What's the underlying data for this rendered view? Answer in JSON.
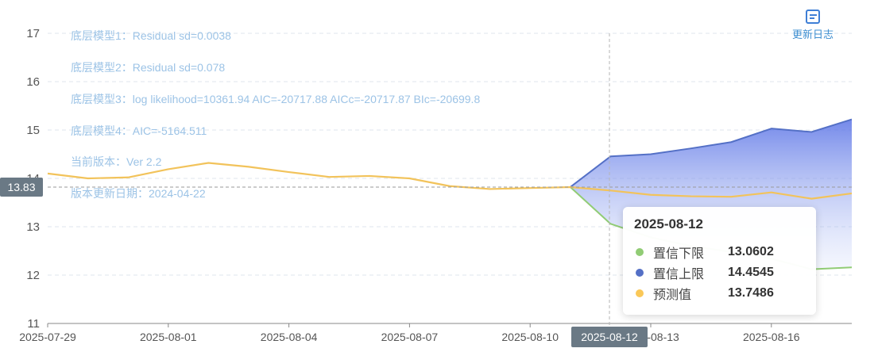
{
  "changelog_label": "更新日志",
  "notes": [
    "底层模型1：Residual sd=0.0038",
    "底层模型2：Residual sd=0.078",
    "底层模型3：log likelihood=10361.94 AIC=-20717.88 AICc=-20717.87 BIc=-20699.8",
    "底层模型4：AIC=-5164.511",
    "当前版本：Ver 2.2",
    "版本更新日期：2024-04-22"
  ],
  "crosshair": {
    "y_label": "13.83",
    "x_label": "2025-08-12"
  },
  "tooltip": {
    "date": "2025-08-12",
    "rows": [
      {
        "label": "置信下限",
        "value": "13.0602",
        "color": "#91cc75"
      },
      {
        "label": "置信上限",
        "value": "14.4545",
        "color": "#5470c6"
      },
      {
        "label": "预测值",
        "value": "13.7486",
        "color": "#fac858"
      }
    ]
  },
  "chart_data": {
    "type": "line",
    "x": [
      "2025-07-29",
      "2025-07-30",
      "2025-07-31",
      "2025-08-01",
      "2025-08-02",
      "2025-08-03",
      "2025-08-04",
      "2025-08-05",
      "2025-08-06",
      "2025-08-07",
      "2025-08-08",
      "2025-08-09",
      "2025-08-10",
      "2025-08-11",
      "2025-08-12",
      "2025-08-13",
      "2025-08-14",
      "2025-08-15",
      "2025-08-16",
      "2025-08-17",
      "2025-08-18"
    ],
    "x_tick_labels": [
      "2025-07-29",
      "2025-08-01",
      "2025-08-04",
      "2025-08-07",
      "2025-08-10",
      "2025-08-13",
      "2025-08-16"
    ],
    "ylim": [
      11,
      17
    ],
    "y_ticks": [
      11,
      12,
      13,
      14,
      15,
      16,
      17
    ],
    "grid": true,
    "series": [
      {
        "name": "预测值",
        "color": "#f2c35b",
        "values": [
          14.1,
          14.0,
          14.02,
          14.19,
          14.32,
          14.24,
          14.13,
          14.03,
          14.05,
          14.0,
          13.84,
          13.78,
          13.8,
          13.82,
          13.7486,
          13.66,
          13.63,
          13.62,
          13.71,
          13.58,
          13.69
        ]
      },
      {
        "name": "置信上限",
        "color": "#5470c6",
        "values": [
          null,
          null,
          null,
          null,
          null,
          null,
          null,
          null,
          null,
          null,
          null,
          null,
          null,
          13.82,
          14.4545,
          14.5,
          14.62,
          14.75,
          15.03,
          14.96,
          15.22
        ]
      },
      {
        "name": "置信下限",
        "color": "#91cc75",
        "values": [
          null,
          null,
          null,
          null,
          null,
          null,
          null,
          null,
          null,
          null,
          null,
          null,
          null,
          13.82,
          13.0602,
          12.78,
          12.6,
          12.48,
          12.34,
          12.12,
          12.16
        ]
      }
    ]
  }
}
